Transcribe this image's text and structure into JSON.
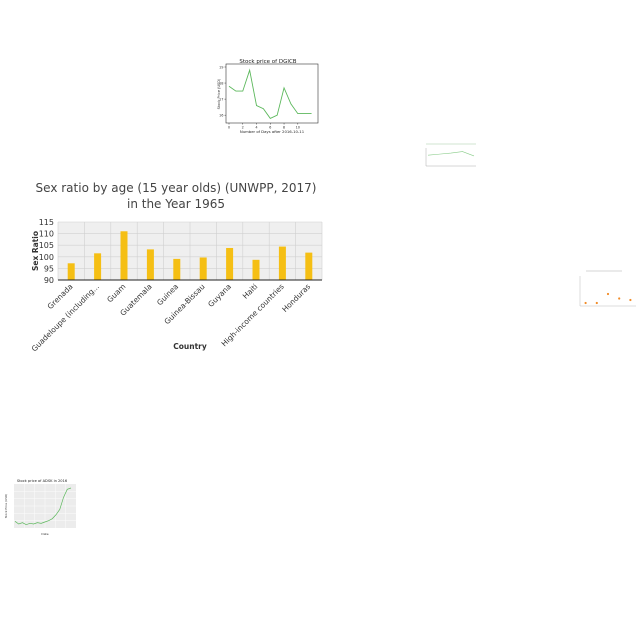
{
  "chart_data": [
    {
      "type": "line",
      "title": "Stock price of DGICB",
      "xlabel": "Number of Days after 2016-10-11",
      "ylabel": "Stock Price (USD)",
      "x": [
        0,
        1,
        2,
        3,
        4,
        5,
        6,
        7,
        8,
        9,
        10,
        11,
        12
      ],
      "y": [
        17.8,
        17.5,
        17.5,
        18.8,
        16.6,
        16.4,
        15.8,
        16.0,
        17.7,
        16.7,
        16.1,
        16.1,
        16.1
      ],
      "xlim": [
        0,
        12.5
      ],
      "ylim": [
        15.7,
        19.0
      ],
      "xticks": [
        "0",
        "2",
        "4",
        "6",
        "8",
        "10"
      ],
      "yticks": [
        "16",
        "17",
        "18",
        "19"
      ],
      "color": "#5cb85c",
      "grid": false
    },
    {
      "type": "line",
      "x": [
        0,
        1,
        2,
        3,
        4
      ],
      "y": [
        3.0,
        3.3,
        3.6,
        4.0,
        2.8
      ],
      "ylim": [
        0,
        5
      ],
      "color": "#88cc88",
      "grid": false
    },
    {
      "type": "bar",
      "title": "Sex ratio by age (15 year olds) (UNWPP, 2017)",
      "subtitle": "in the Year 1965",
      "xlabel": "Country",
      "ylabel": "Sex Ratio",
      "categories": [
        "Grenada",
        "Guadeloupe (including...",
        "Guam",
        "Guatemala",
        "Guinea",
        "Guinea-Bissau",
        "Guyana",
        "Haiti",
        "High-income countries",
        "Honduras"
      ],
      "values": [
        97.2,
        101.5,
        111.0,
        103.2,
        99.1,
        99.7,
        103.8,
        98.7,
        104.4,
        101.8
      ],
      "ylim": [
        90,
        115
      ],
      "yticks": [
        "90",
        "95",
        "100",
        "105",
        "110",
        "115"
      ],
      "color": "#f5bf14",
      "grid": true
    },
    {
      "type": "scatter",
      "x": [
        1,
        2,
        3,
        4,
        5
      ],
      "y": [
        1.0,
        1.0,
        4.0,
        2.5,
        2.0
      ],
      "ylim": [
        0,
        10
      ],
      "color": "#f28c28",
      "grid": false
    },
    {
      "type": "line",
      "title": "Stock price of ADSK in 2016",
      "xlabel": "Date",
      "ylabel": "Stock Price (USD)",
      "x": [
        0,
        1,
        2,
        3,
        4,
        5,
        6,
        7,
        8,
        9,
        10,
        11,
        12,
        13,
        14,
        15
      ],
      "y": [
        62,
        58,
        60,
        57,
        59,
        58,
        60,
        59,
        61,
        63,
        66,
        72,
        80,
        98,
        110,
        112
      ],
      "xlim": [
        0,
        15
      ],
      "ylim": [
        55,
        115
      ],
      "color": "#5cb85c",
      "grid": true
    }
  ]
}
